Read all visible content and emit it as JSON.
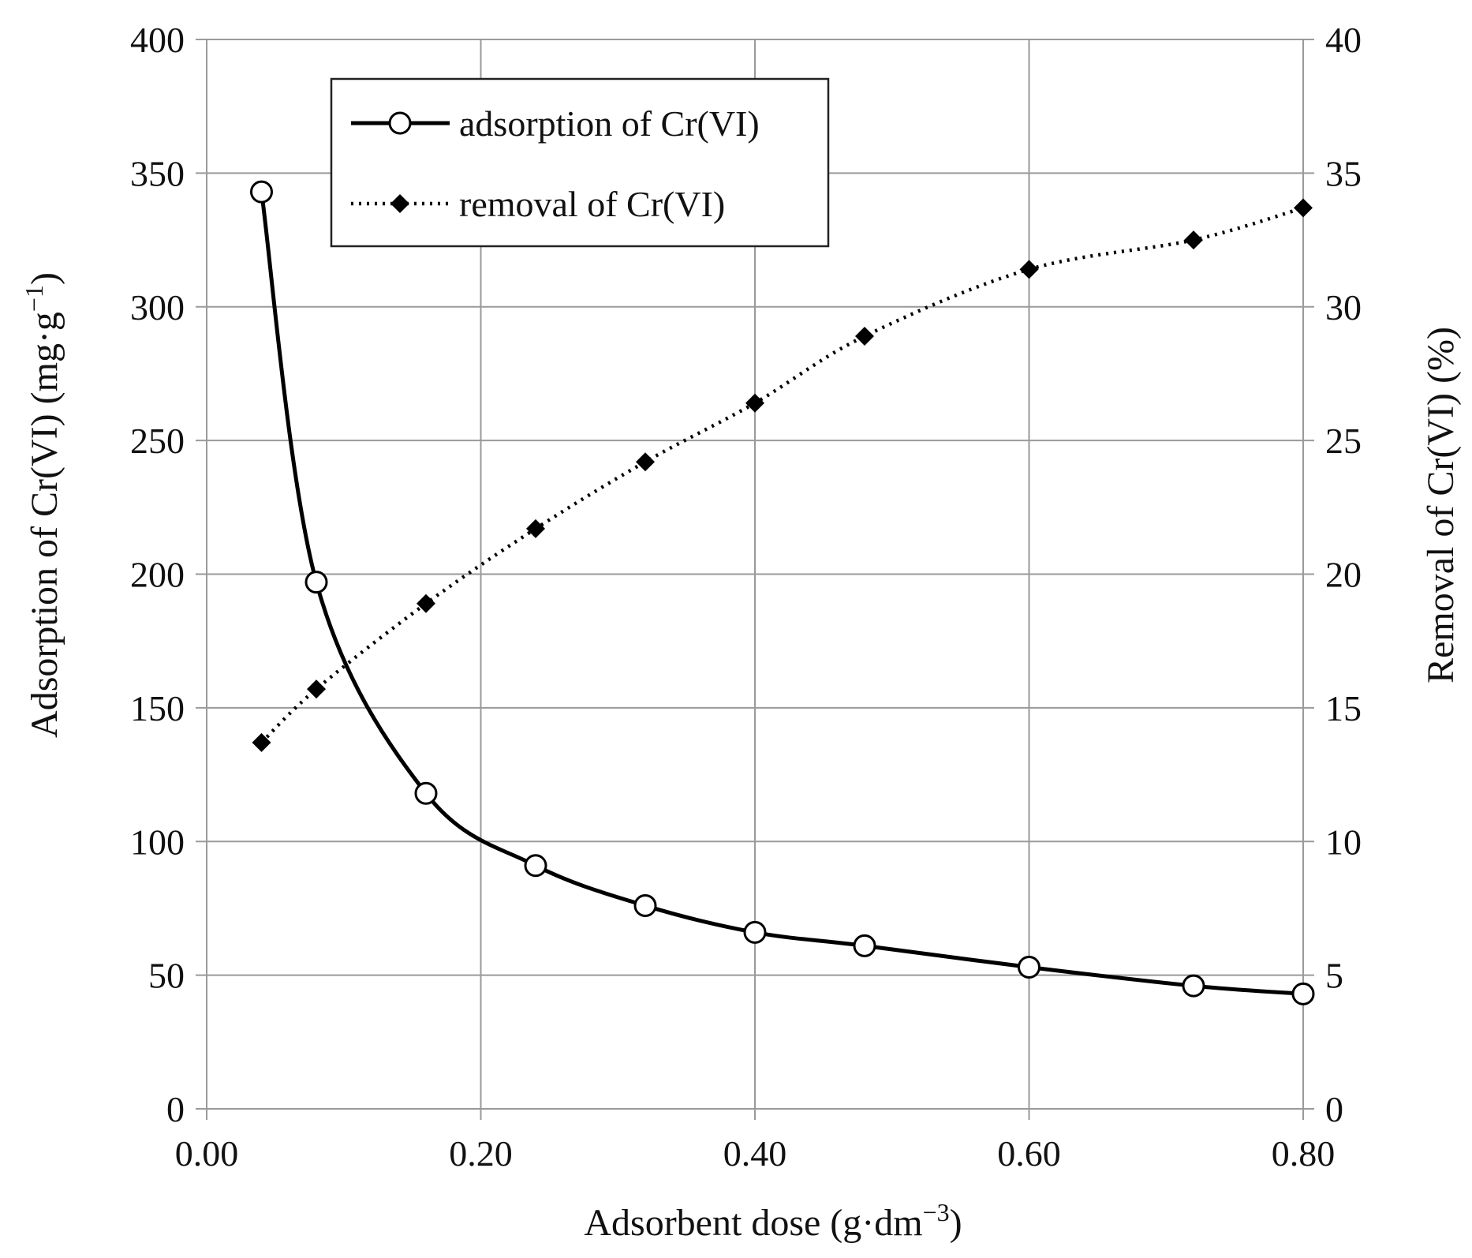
{
  "chart_data": {
    "type": "line",
    "x": [
      0.04,
      0.08,
      0.16,
      0.24,
      0.32,
      0.4,
      0.48,
      0.6,
      0.72,
      0.8
    ],
    "xlim": [
      0.0,
      0.8
    ],
    "xticks": [
      "0.00",
      "0.20",
      "0.40",
      "0.60",
      "0.80"
    ],
    "xtick_values": [
      0.0,
      0.2,
      0.4,
      0.6,
      0.8
    ],
    "xlabel_main": "Adsorbent dose (g·dm",
    "xlabel_sup": "−3",
    "xlabel_end": ")",
    "ylim": [
      0,
      400
    ],
    "yticks": [
      "0",
      "50",
      "100",
      "150",
      "200",
      "250",
      "300",
      "350",
      "400"
    ],
    "ytick_values": [
      0,
      50,
      100,
      150,
      200,
      250,
      300,
      350,
      400
    ],
    "ylabel_main": "Adsorption of Cr(VI) (mg·g",
    "ylabel_sup": "−1",
    "ylabel_end": ")",
    "y2lim": [
      0,
      40
    ],
    "y2ticks": [
      "0",
      "5",
      "10",
      "15",
      "20",
      "25",
      "30",
      "35",
      "40"
    ],
    "y2tick_values": [
      0,
      5,
      10,
      15,
      20,
      25,
      30,
      35,
      40
    ],
    "y2label": "Removal of Cr(VI) (%)",
    "grid": true,
    "legend_position": "top-left",
    "series": [
      {
        "name": "adsorption of Cr(VI)",
        "axis": "left",
        "style": "solid",
        "marker": "open-circle",
        "values": [
          343,
          197,
          118,
          91,
          76,
          66,
          61,
          53,
          46,
          43
        ]
      },
      {
        "name": "removal of Cr(VI)",
        "axis": "right",
        "style": "dotted",
        "marker": "filled-diamond",
        "values": [
          13.7,
          15.7,
          18.9,
          21.7,
          24.2,
          26.4,
          28.9,
          31.4,
          32.5,
          33.7
        ]
      }
    ]
  }
}
